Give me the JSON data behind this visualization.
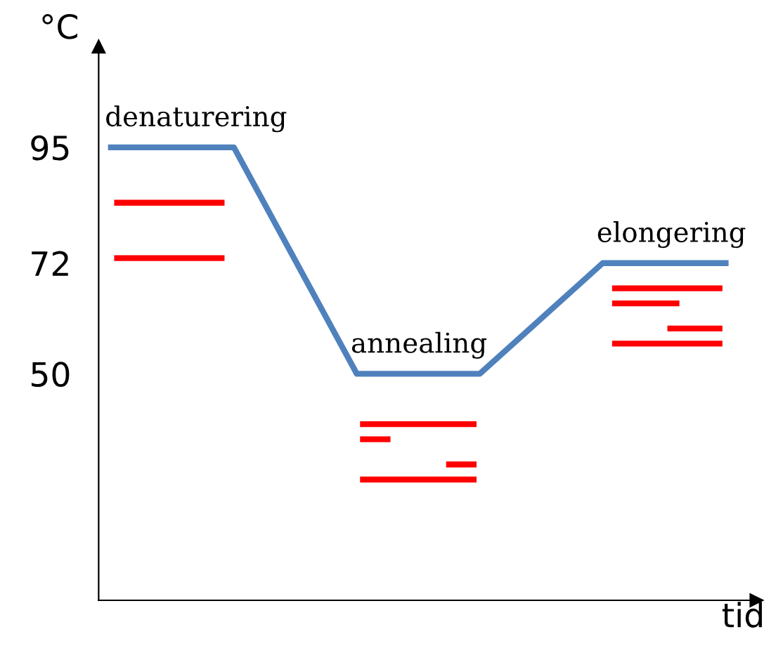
{
  "chart_data": {
    "type": "line",
    "categories": [
      null,
      null,
      null,
      null,
      null,
      null
    ],
    "series": [
      {
        "color": "#4f81bd",
        "values": [
          95,
          95,
          50,
          50,
          72,
          72
        ]
      }
    ],
    "ylim": [
      5,
      115
    ],
    "yticks": [
      50,
      72,
      95
    ],
    "ylabel": "°C",
    "xlabel": "tid",
    "annotations": [
      "denaturering",
      "annealing",
      "elongering"
    ],
    "grid": false,
    "legend": false
  }
}
